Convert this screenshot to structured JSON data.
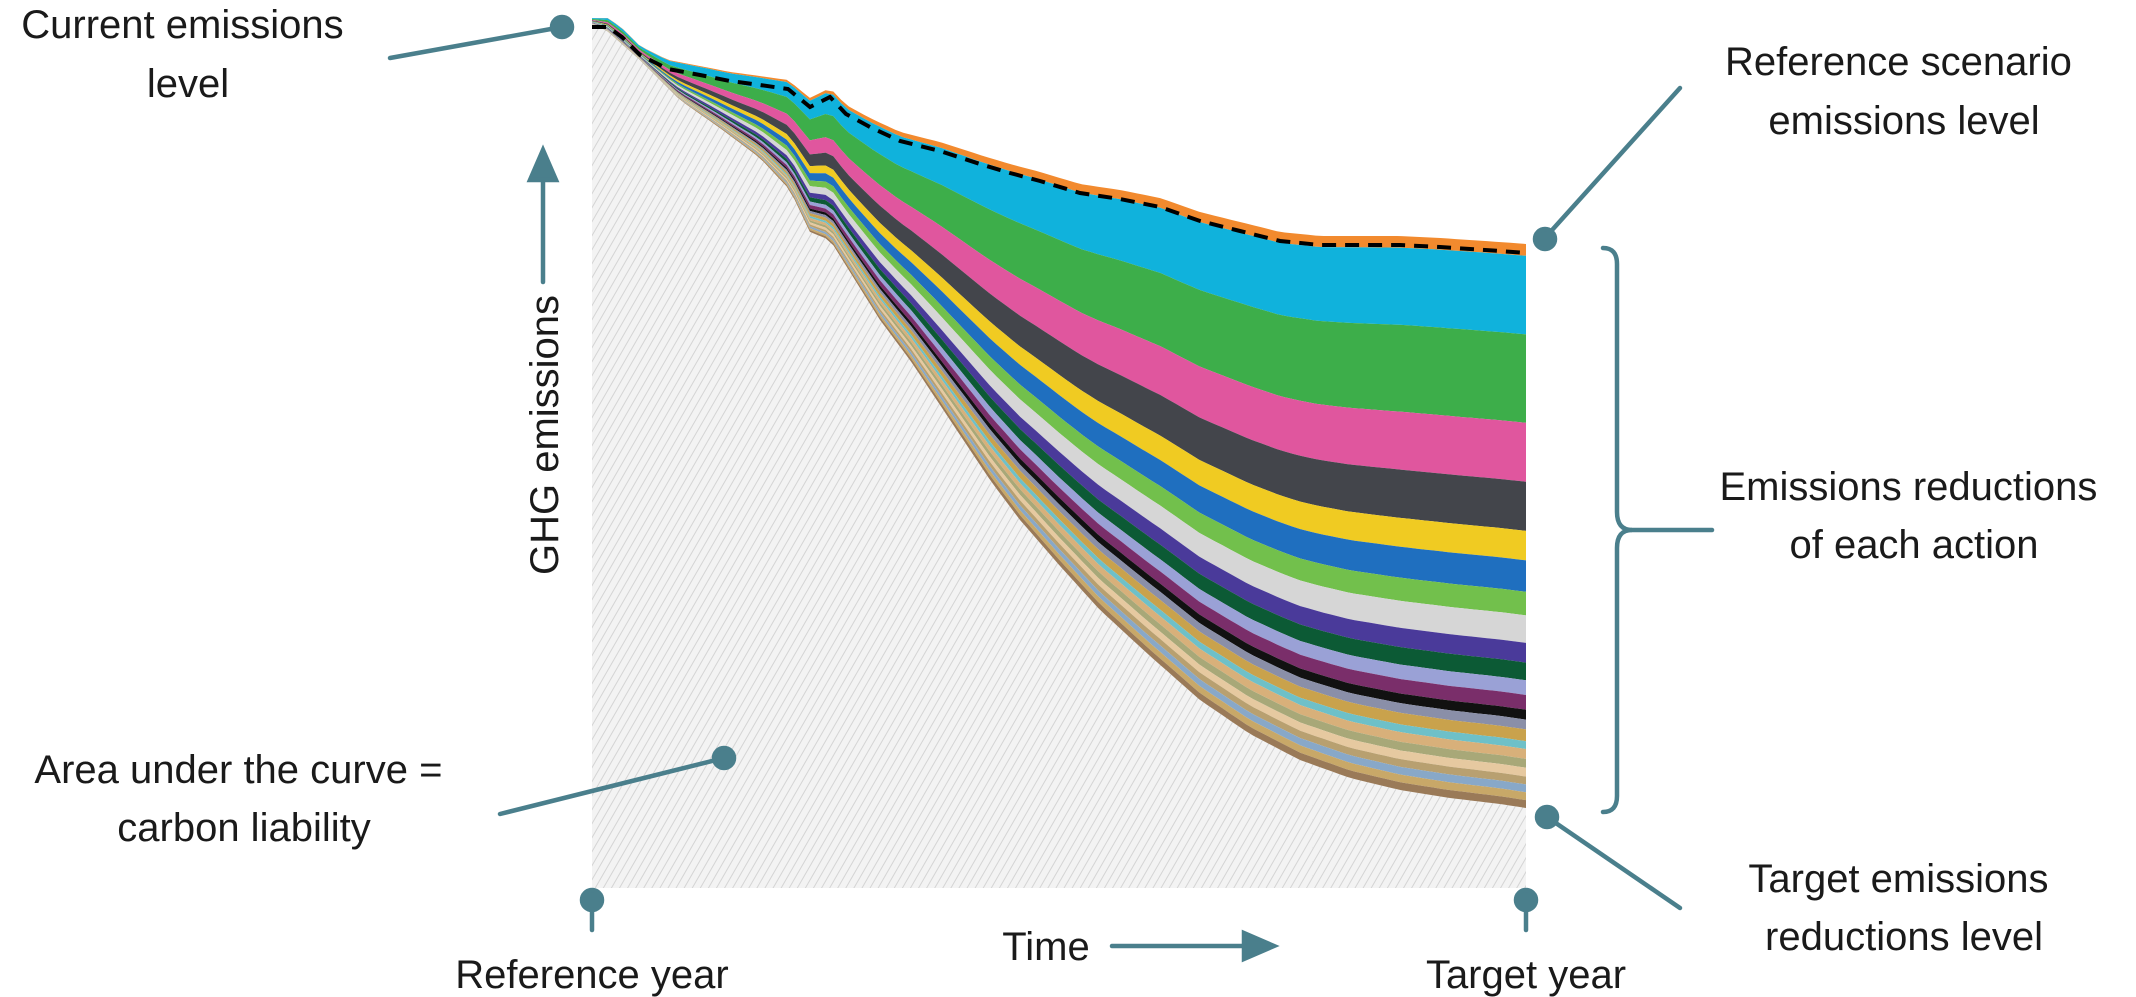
{
  "labels": {
    "current_emissions": [
      "Current emissions",
      "level"
    ],
    "reference_scenario": [
      "Reference scenario",
      "emissions level"
    ],
    "emissions_reductions": [
      "Emissions reductions",
      "of each action"
    ],
    "area_under_curve": [
      "Area under the curve =",
      "carbon liability"
    ],
    "target_emissions": [
      "Target emissions",
      "reductions level"
    ],
    "y_axis": "GHG emissions",
    "x_axis": "Time",
    "reference_year": "Reference year",
    "target_year": "Target year"
  },
  "colors": {
    "annotation": "#4a7f8c",
    "reference_line": "#000000",
    "hatch_area": "#e8e8e8",
    "bands": [
      "#f28a2e",
      "#10b2dc",
      "#3dae4a",
      "#e0569e",
      "#43454b",
      "#f0cb22",
      "#1f6fbf",
      "#72c04c",
      "#d6d6d6",
      "#4a3a9a",
      "#0c5a35",
      "#9aa1d6",
      "#7a2e6a",
      "#111111",
      "#8a8fa8",
      "#c9a24c",
      "#6ec0c8",
      "#d8b07a",
      "#a8a878",
      "#e6c9a0",
      "#b8a070",
      "#88a8c8",
      "#c8a868",
      "#9a7a58"
    ]
  }
}
